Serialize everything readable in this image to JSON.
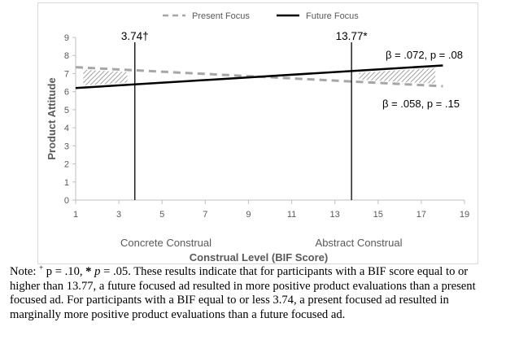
{
  "chart_data": {
    "type": "line",
    "title": "",
    "xlabel": "Construal Level (BIF Score)",
    "ylabel": "Product Attitude",
    "xlim": [
      1,
      19
    ],
    "ylim": [
      0,
      9
    ],
    "x_ticks": [
      1,
      3,
      5,
      7,
      9,
      11,
      13,
      15,
      17,
      19
    ],
    "y_ticks": [
      0,
      1,
      2,
      3,
      4,
      5,
      6,
      7,
      8,
      9
    ],
    "grid": false,
    "legend_position": "top",
    "series": [
      {
        "name": "Present Focus",
        "style": "dashed",
        "color": "#a6a6a6",
        "x": [
          1,
          18
        ],
        "y": [
          7.35,
          6.3
        ]
      },
      {
        "name": "Future Focus",
        "style": "solid",
        "color": "#000000",
        "x": [
          1,
          18
        ],
        "y": [
          6.2,
          7.45
        ]
      }
    ],
    "shaded_regions": [
      {
        "from_x": 1,
        "to_x": 3.74,
        "upper": "Present Focus",
        "lower": "Future Focus",
        "pattern": "hatched"
      },
      {
        "from_x": 13.77,
        "to_x": 18,
        "upper": "Future Focus",
        "lower": "Present Focus",
        "pattern": "hatched"
      }
    ],
    "vertical_lines": [
      {
        "x": 3.74,
        "label": "3.74†"
      },
      {
        "x": 13.77,
        "label": "13.77*"
      }
    ],
    "annotations": [
      {
        "text": "β = .072, p = .08",
        "series": "Future Focus"
      },
      {
        "text": "β = .058, p = .15",
        "series": "Present Focus"
      }
    ],
    "region_labels": [
      "Concrete Construal",
      "Abstract Construal"
    ]
  },
  "note": {
    "prefix": "Note: ",
    "dagger_sup": "+",
    "p10": " p = .10, ",
    "star": "*",
    "p_italic": "p",
    "p05": " = .05. ",
    "body": "These results indicate that for participants with a BIF score equal to or higher than 13.77, a future focused ad resulted in more positive product evaluations than a present focused ad. For participants with a BIF equal to or less 3.74, a present focused ad resulted in marginally more positive product evaluations than a future focused ad."
  }
}
